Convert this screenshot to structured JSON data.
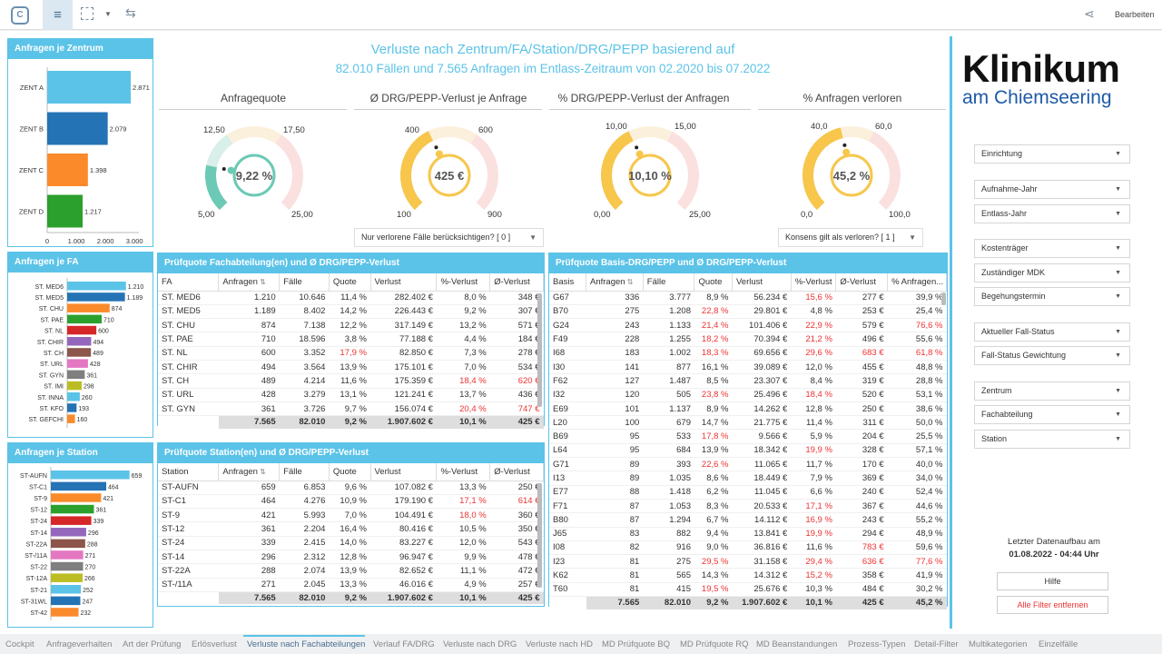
{
  "toolbar": {
    "edit_label": "Bearbeiten"
  },
  "title": {
    "line1": "Verluste nach Zentrum/FA/Station/DRG/PEPP basierend auf",
    "line2": "82.010 Fällen und 7.565 Anfragen im Entlass-Zeitraum von 02.2020 bis 07.2022"
  },
  "zentrum": {
    "title": "Anfragen je Zentrum",
    "items": [
      {
        "label": "ZENT A",
        "value": 2871,
        "value_label": "2.871",
        "color": "#5bc3e8"
      },
      {
        "label": "ZENT B",
        "value": 2079,
        "value_label": "2.079",
        "color": "#2473b5"
      },
      {
        "label": "ZENT C",
        "value": 1398,
        "value_label": "1.398",
        "color": "#fb8a2b"
      },
      {
        "label": "ZENT D",
        "value": 1217,
        "value_label": "1.217",
        "color": "#2ca02c"
      }
    ],
    "ticks": [
      "0",
      "1.000",
      "2.000",
      "3.000"
    ]
  },
  "fa": {
    "title": "Anfragen je FA",
    "items": [
      {
        "label": "ST. MED6",
        "value": 1210,
        "value_label": "1.210",
        "color": "#5bc3e8"
      },
      {
        "label": "ST. MED5",
        "value": 1189,
        "value_label": "1.189",
        "color": "#2473b5"
      },
      {
        "label": "ST. CHU",
        "value": 874,
        "value_label": "874",
        "color": "#fb8a2b"
      },
      {
        "label": "ST. PAE",
        "value": 710,
        "value_label": "710",
        "color": "#2ca02c"
      },
      {
        "label": "ST. NL",
        "value": 600,
        "value_label": "600",
        "color": "#d62728"
      },
      {
        "label": "ST. CHIR",
        "value": 494,
        "value_label": "494",
        "color": "#9467bd"
      },
      {
        "label": "ST. CH",
        "value": 489,
        "value_label": "489",
        "color": "#8c564b"
      },
      {
        "label": "ST. URL",
        "value": 428,
        "value_label": "428",
        "color": "#e377c2"
      },
      {
        "label": "ST. GYN",
        "value": 361,
        "value_label": "361",
        "color": "#7f7f7f"
      },
      {
        "label": "ST. IMI",
        "value": 298,
        "value_label": "298",
        "color": "#bcbd22"
      },
      {
        "label": "ST. INNA",
        "value": 260,
        "value_label": "260",
        "color": "#5bc3e8"
      },
      {
        "label": "ST. KFO",
        "value": 193,
        "value_label": "193",
        "color": "#2473b5"
      },
      {
        "label": "ST. GEFCHI",
        "value": 160,
        "value_label": "160",
        "color": "#fb8a2b"
      }
    ]
  },
  "station": {
    "title": "Anfragen je Station",
    "items": [
      {
        "label": "ST-AUFN",
        "value": 659,
        "value_label": "659",
        "color": "#5bc3e8"
      },
      {
        "label": "ST-C1",
        "value": 464,
        "value_label": "464",
        "color": "#2473b5"
      },
      {
        "label": "ST-9",
        "value": 421,
        "value_label": "421",
        "color": "#fb8a2b"
      },
      {
        "label": "ST-12",
        "value": 361,
        "value_label": "361",
        "color": "#2ca02c"
      },
      {
        "label": "ST-24",
        "value": 339,
        "value_label": "339",
        "color": "#d62728"
      },
      {
        "label": "ST-14",
        "value": 296,
        "value_label": "296",
        "color": "#9467bd"
      },
      {
        "label": "ST-22A",
        "value": 288,
        "value_label": "288",
        "color": "#8c564b"
      },
      {
        "label": "ST-/11A",
        "value": 271,
        "value_label": "271",
        "color": "#e377c2"
      },
      {
        "label": "ST-22",
        "value": 270,
        "value_label": "270",
        "color": "#7f7f7f"
      },
      {
        "label": "ST-12A",
        "value": 266,
        "value_label": "266",
        "color": "#bcbd22"
      },
      {
        "label": "ST-21",
        "value": 252,
        "value_label": "252",
        "color": "#5bc3e8"
      },
      {
        "label": "ST-31WL",
        "value": 247,
        "value_label": "247",
        "color": "#2473b5"
      },
      {
        "label": "ST-42",
        "value": 232,
        "value_label": "232",
        "color": "#fb8a2b"
      }
    ]
  },
  "gauges": [
    {
      "title": "Anfragequote",
      "value": 9.22,
      "display": "9,22 %",
      "min_label": "5,00",
      "max_label": "25,00",
      "t1_label": "12,50",
      "t2_label": "17,50",
      "min": 5,
      "max": 25,
      "t1": 12.5,
      "t2": 17.5,
      "color": "#6cc9b5"
    },
    {
      "title": "Ø DRG/PEPP-Verlust je Anfrage",
      "value": 425,
      "display": "425 €",
      "min_label": "100",
      "max_label": "900",
      "t1_label": "400",
      "t2_label": "600",
      "min": 100,
      "max": 900,
      "t1": 400,
      "t2": 600,
      "color": "#f7c64b"
    },
    {
      "title": "% DRG/PEPP-Verlust der Anfragen",
      "value": 10.1,
      "display": "10,10 %",
      "min_label": "0,00",
      "max_label": "25,00",
      "t1_label": "10,00",
      "t2_label": "15,00",
      "min": 0,
      "max": 25,
      "t1": 10,
      "t2": 15,
      "color": "#f7c64b"
    },
    {
      "title": "% Anfragen verloren",
      "value": 45.2,
      "display": "45,2 %",
      "min_label": "0,0",
      "max_label": "100,0",
      "t1_label": "40,0",
      "t2_label": "60,0",
      "min": 0,
      "max": 100,
      "t1": 40,
      "t2": 60,
      "color": "#f7c64b"
    }
  ],
  "gauge_dropdowns": {
    "verlorene": "Nur verlorene Fälle berücksichtigen? [ 0 ]",
    "konsens": "Konsens gilt als verloren? [ 1 ]"
  },
  "table_fa": {
    "title": "Prüfquote Fachabteilung(en) und Ø DRG/PEPP-Verlust",
    "headers": [
      "FA",
      "Anfragen",
      "Fälle",
      "Quote",
      "Verlust",
      "%-Verlust",
      "Ø-Verlust"
    ],
    "rows": [
      [
        "ST. MED6",
        "1.210",
        "10.646",
        "11,4 %",
        "282.402 €",
        "8,0 %",
        "348 €"
      ],
      [
        "ST. MED5",
        "1.189",
        "8.402",
        "14,2 %",
        "226.443 €",
        "9,2 %",
        "307 €"
      ],
      [
        "ST. CHU",
        "874",
        "7.138",
        "12,2 %",
        "317.149 €",
        "13,2 %",
        "571 €"
      ],
      [
        "ST. PAE",
        "710",
        "18.596",
        "3,8 %",
        "77.188 €",
        "4,4 %",
        "184 €"
      ],
      [
        "ST. NL",
        "600",
        "3.352",
        "17,9 %",
        "82.850 €",
        "7,3 %",
        "278 €"
      ],
      [
        "ST. CHIR",
        "494",
        "3.564",
        "13,9 %",
        "175.101 €",
        "7,0 %",
        "534 €"
      ],
      [
        "ST. CH",
        "489",
        "4.214",
        "11,6 %",
        "175.359 €",
        "18,4 %",
        "620 €"
      ],
      [
        "ST. URL",
        "428",
        "3.279",
        "13,1 %",
        "121.241 €",
        "13,7 %",
        "436 €"
      ],
      [
        "ST. GYN",
        "361",
        "3.726",
        "9,7 %",
        "156.074 €",
        "20,4 %",
        "747 €"
      ]
    ],
    "red": [
      [
        4,
        3
      ],
      [
        6,
        5
      ],
      [
        6,
        6
      ],
      [
        8,
        5
      ],
      [
        8,
        6
      ]
    ],
    "totals": [
      "",
      "7.565",
      "82.010",
      "9,2 %",
      "1.907.602 €",
      "10,1 %",
      "425 €"
    ]
  },
  "table_station": {
    "title": "Prüfquote Station(en) und Ø DRG/PEPP-Verlust",
    "headers": [
      "Station",
      "Anfragen",
      "Fälle",
      "Quote",
      "Verlust",
      "%-Verlust",
      "Ø-Verlust"
    ],
    "rows": [
      [
        "ST-AUFN",
        "659",
        "6.853",
        "9,6 %",
        "107.082 €",
        "13,3 %",
        "250 €"
      ],
      [
        "ST-C1",
        "464",
        "4.276",
        "10,9 %",
        "179.190 €",
        "17,1 %",
        "614 €"
      ],
      [
        "ST-9",
        "421",
        "5.993",
        "7,0 %",
        "104.491 €",
        "18,0 %",
        "360 €"
      ],
      [
        "ST-12",
        "361",
        "2.204",
        "16,4 %",
        "80.416 €",
        "10,5 %",
        "350 €"
      ],
      [
        "ST-24",
        "339",
        "2.415",
        "14,0 %",
        "83.227 €",
        "12,0 %",
        "543 €"
      ],
      [
        "ST-14",
        "296",
        "2.312",
        "12,8 %",
        "96.947 €",
        "9,9 %",
        "478 €"
      ],
      [
        "ST-22A",
        "288",
        "2.074",
        "13,9 %",
        "82.652 €",
        "11,1 %",
        "472 €"
      ],
      [
        "ST-/11A",
        "271",
        "2.045",
        "13,3 %",
        "46.016 €",
        "4,9 %",
        "257 €"
      ]
    ],
    "red": [
      [
        1,
        5
      ],
      [
        1,
        6
      ],
      [
        2,
        5
      ]
    ],
    "totals": [
      "",
      "7.565",
      "82.010",
      "9,2 %",
      "1.907.602 €",
      "10,1 %",
      "425 €"
    ]
  },
  "table_basis": {
    "title": "Prüfquote Basis-DRG/PEPP und Ø DRG/PEPP-Verlust",
    "headers": [
      "Basis",
      "Anfragen",
      "Fälle",
      "Quote",
      "Verlust",
      "%-Verlust",
      "Ø-Verlust",
      "% Anfragen..."
    ],
    "rows": [
      [
        "G67",
        "336",
        "3.777",
        "8,9 %",
        "56.234 €",
        "15,6 %",
        "277 €",
        "39,9 %"
      ],
      [
        "B70",
        "275",
        "1.208",
        "22,8 %",
        "29.801 €",
        "4,8 %",
        "253 €",
        "25,4 %"
      ],
      [
        "G24",
        "243",
        "1.133",
        "21,4 %",
        "101.406 €",
        "22,9 %",
        "579 €",
        "76,6 %"
      ],
      [
        "F49",
        "228",
        "1.255",
        "18,2 %",
        "70.394 €",
        "21,2 %",
        "496 €",
        "55,6 %"
      ],
      [
        "I68",
        "183",
        "1.002",
        "18,3 %",
        "69.656 €",
        "29,6 %",
        "683 €",
        "61,8 %"
      ],
      [
        "I30",
        "141",
        "877",
        "16,1 %",
        "39.089 €",
        "12,0 %",
        "455 €",
        "48,8 %"
      ],
      [
        "F62",
        "127",
        "1.487",
        "8,5 %",
        "23.307 €",
        "8,4 %",
        "319 €",
        "28,8 %"
      ],
      [
        "I32",
        "120",
        "505",
        "23,8 %",
        "25.496 €",
        "18,4 %",
        "520 €",
        "53,1 %"
      ],
      [
        "E69",
        "101",
        "1.137",
        "8,9 %",
        "14.262 €",
        "12,8 %",
        "250 €",
        "38,6 %"
      ],
      [
        "L20",
        "100",
        "679",
        "14,7 %",
        "21.775 €",
        "11,4 %",
        "311 €",
        "50,0 %"
      ],
      [
        "B69",
        "95",
        "533",
        "17,8 %",
        "9.566 €",
        "5,9 %",
        "204 €",
        "25,5 %"
      ],
      [
        "L64",
        "95",
        "684",
        "13,9 %",
        "18.342 €",
        "19,9 %",
        "328 €",
        "57,1 %"
      ],
      [
        "G71",
        "89",
        "393",
        "22,6 %",
        "11.065 €",
        "11,7 %",
        "170 €",
        "40,0 %"
      ],
      [
        "I13",
        "89",
        "1.035",
        "8,6 %",
        "18.449 €",
        "7,9 %",
        "369 €",
        "34,0 %"
      ],
      [
        "E77",
        "88",
        "1.418",
        "6,2 %",
        "11.045 €",
        "6,6 %",
        "240 €",
        "52,4 %"
      ],
      [
        "F71",
        "87",
        "1.053",
        "8,3 %",
        "20.533 €",
        "17,1 %",
        "367 €",
        "44,6 %"
      ],
      [
        "B80",
        "87",
        "1.294",
        "6,7 %",
        "14.112 €",
        "16,9 %",
        "243 €",
        "55,2 %"
      ],
      [
        "J65",
        "83",
        "882",
        "9,4 %",
        "13.841 €",
        "19,9 %",
        "294 €",
        "48,9 %"
      ],
      [
        "I08",
        "82",
        "916",
        "9,0 %",
        "36.816 €",
        "11,6 %",
        "783 €",
        "59,6 %"
      ],
      [
        "I23",
        "81",
        "275",
        "29,5 %",
        "31.158 €",
        "29,4 %",
        "636 €",
        "77,6 %"
      ],
      [
        "K62",
        "81",
        "565",
        "14,3 %",
        "14.312 €",
        "15,2 %",
        "358 €",
        "41,9 %"
      ],
      [
        "T60",
        "81",
        "415",
        "19,5 %",
        "25.676 €",
        "10,3 %",
        "484 €",
        "30,2 %"
      ]
    ],
    "red": [
      [
        0,
        5
      ],
      [
        1,
        3
      ],
      [
        2,
        3
      ],
      [
        2,
        5
      ],
      [
        2,
        7
      ],
      [
        3,
        3
      ],
      [
        3,
        5
      ],
      [
        4,
        3
      ],
      [
        4,
        5
      ],
      [
        4,
        6
      ],
      [
        4,
        7
      ],
      [
        7,
        3
      ],
      [
        7,
        5
      ],
      [
        10,
        3
      ],
      [
        11,
        5
      ],
      [
        12,
        3
      ],
      [
        15,
        5
      ],
      [
        16,
        5
      ],
      [
        17,
        5
      ],
      [
        18,
        6
      ],
      [
        19,
        3
      ],
      [
        19,
        5
      ],
      [
        19,
        6
      ],
      [
        19,
        7
      ],
      [
        20,
        5
      ],
      [
        21,
        3
      ]
    ],
    "totals": [
      "",
      "7.565",
      "82.010",
      "9,2 %",
      "1.907.602 €",
      "10,1 %",
      "425 €",
      "45,2 %"
    ]
  },
  "brand": {
    "line1": "Klinikum",
    "line2": "am Chiemseering"
  },
  "filters": [
    "Einrichtung",
    "Aufnahme-Jahr",
    "Entlass-Jahr",
    "Kostenträger",
    "Zuständiger MDK",
    "Begehungstermin",
    "Aktueller Fall-Status",
    "Fall-Status Gewichtung",
    "Zentrum",
    "Fachabteilung",
    "Station"
  ],
  "update": {
    "label": "Letzter Datenaufbau am",
    "value": "01.08.2022 - 04:44 Uhr"
  },
  "buttons": {
    "help": "Hilfe",
    "clear": "Alle Filter entfernen"
  },
  "sheet_tabs": [
    "Cockpit",
    "Anfrageverhalten",
    "Art der Prüfung",
    "Erlösverlust",
    "Verluste nach Fachabteilungen",
    "Verlauf FA/DRG",
    "Verluste nach DRG",
    "Verluste nach HD",
    "MD Prüfquote BQ",
    "MD Prüfquote RQ",
    "MD Beanstandungen",
    "Prozess-Typen",
    "Detail-Filter",
    "Multikategorien",
    "Einzelfälle"
  ],
  "active_tab": 4
}
